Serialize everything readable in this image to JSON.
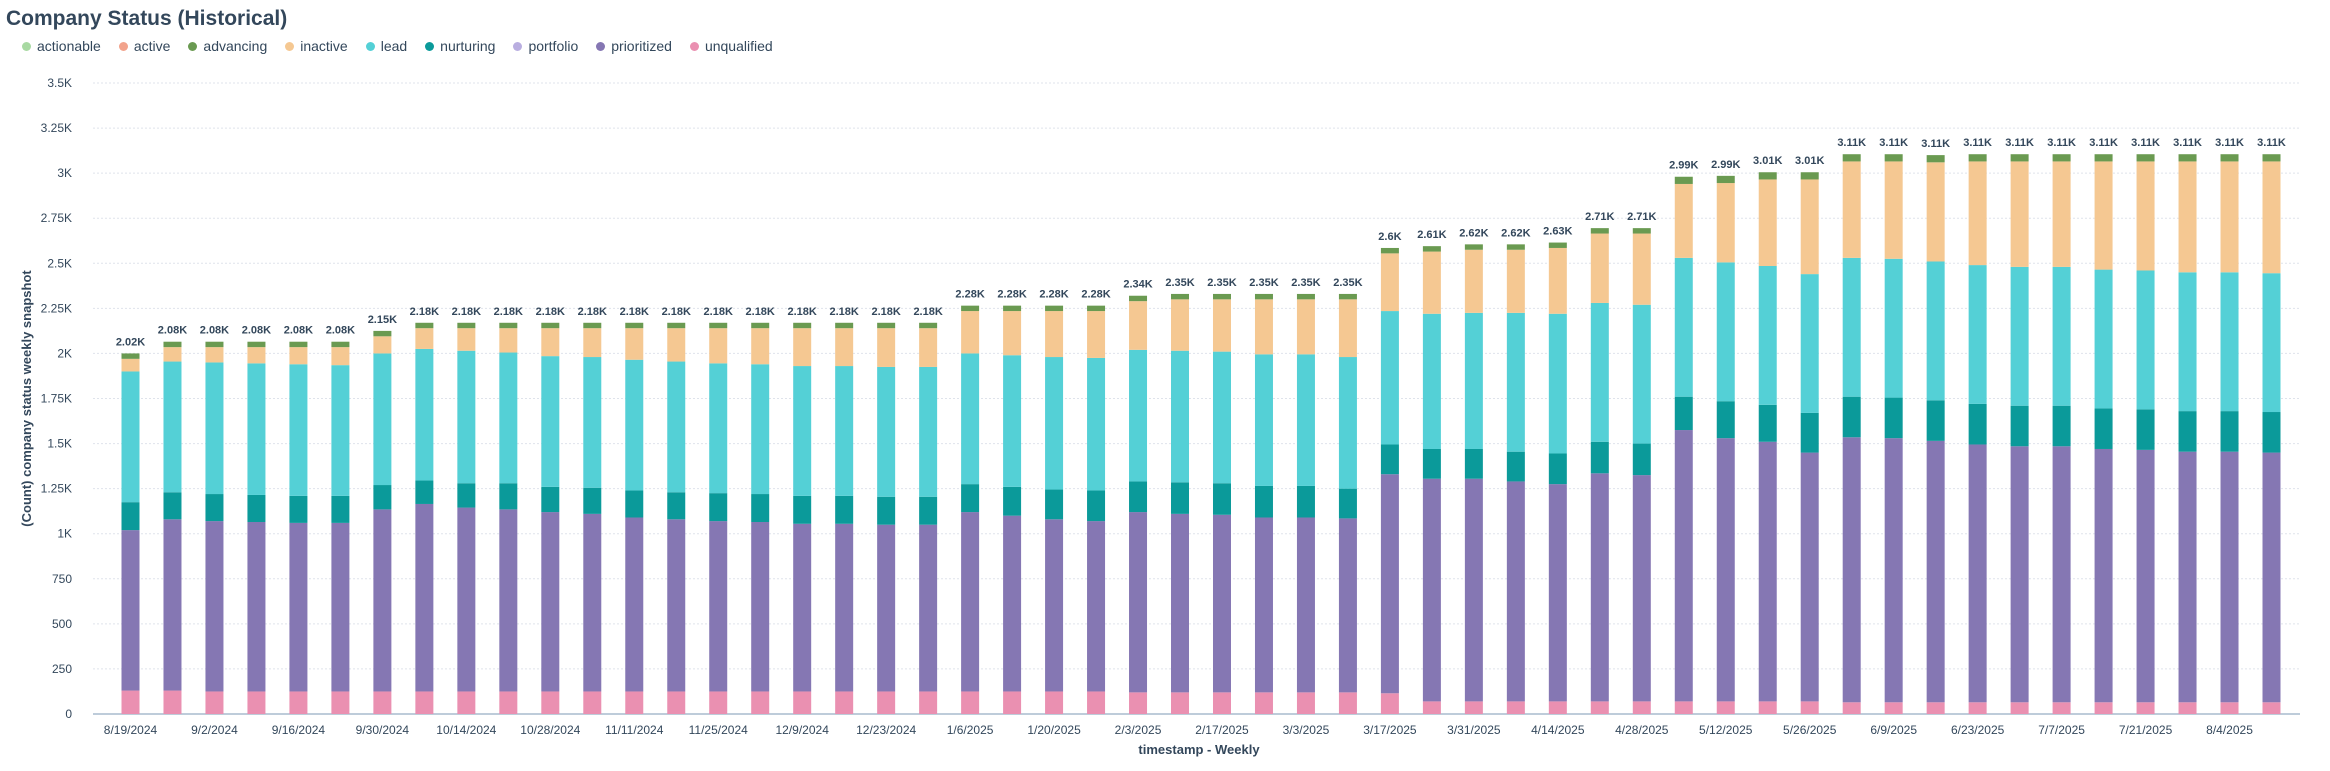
{
  "header": {
    "title": "Company Status (Historical)"
  },
  "chart_data": {
    "type": "bar",
    "stacked": true,
    "title": "Company Status (Historical)",
    "xlabel": "timestamp - Weekly",
    "ylabel": "(Count) company status weekly snapshot",
    "ylim": [
      0,
      3500
    ],
    "yticks": [
      0,
      250,
      500,
      750,
      1000,
      1250,
      1500,
      1750,
      2000,
      2250,
      2500,
      2750,
      3000,
      3250,
      3500
    ],
    "ytick_labels": [
      "0",
      "250",
      "500",
      "750",
      "1K",
      "1.25K",
      "1.5K",
      "1.75K",
      "2K",
      "2.25K",
      "2.5K",
      "2.75K",
      "3K",
      "3.25K",
      "3.5K"
    ],
    "grid": true,
    "legend_position": "top-left",
    "categories": [
      "8/19/2024",
      "8/26/2024",
      "9/2/2024",
      "9/9/2024",
      "9/16/2024",
      "9/23/2024",
      "9/30/2024",
      "10/7/2024",
      "10/14/2024",
      "10/21/2024",
      "10/28/2024",
      "11/4/2024",
      "11/11/2024",
      "11/18/2024",
      "11/25/2024",
      "12/2/2024",
      "12/9/2024",
      "12/16/2024",
      "12/23/2024",
      "12/30/2024",
      "1/6/2025",
      "1/13/2025",
      "1/20/2025",
      "1/27/2025",
      "2/3/2025",
      "2/10/2025",
      "2/17/2025",
      "2/24/2025",
      "3/3/2025",
      "3/10/2025",
      "3/17/2025",
      "3/24/2025",
      "3/31/2025",
      "4/7/2025",
      "4/14/2025",
      "4/21/2025",
      "4/28/2025",
      "5/5/2025",
      "5/12/2025",
      "5/19/2025",
      "5/26/2025",
      "6/2/2025",
      "6/9/2025",
      "6/16/2025",
      "6/23/2025",
      "6/30/2025",
      "7/7/2025",
      "7/14/2025",
      "7/21/2025",
      "7/28/2025",
      "8/4/2025",
      "8/11/2025"
    ],
    "xtick_labels": [
      "8/19/2024",
      "9/2/2024",
      "9/16/2024",
      "9/30/2024",
      "10/14/2024",
      "10/28/2024",
      "11/11/2024",
      "11/25/2024",
      "12/9/2024",
      "12/23/2024",
      "1/6/2025",
      "1/20/2025",
      "2/3/2025",
      "2/17/2025",
      "3/3/2025",
      "3/17/2025",
      "3/31/2025",
      "4/14/2025",
      "4/28/2025",
      "5/12/2025",
      "5/26/2025",
      "6/9/2025",
      "6/23/2025",
      "7/7/2025",
      "7/21/2025",
      "8/4/2025"
    ],
    "totals_labels": [
      "2.02K",
      "2.08K",
      "2.08K",
      "2.08K",
      "2.08K",
      "2.08K",
      "2.15K",
      "2.18K",
      "2.18K",
      "2.18K",
      "2.18K",
      "2.18K",
      "2.18K",
      "2.18K",
      "2.18K",
      "2.18K",
      "2.18K",
      "2.18K",
      "2.18K",
      "2.18K",
      "2.28K",
      "2.28K",
      "2.28K",
      "2.28K",
      "2.34K",
      "2.35K",
      "2.35K",
      "2.35K",
      "2.35K",
      "2.35K",
      "2.6K",
      "2.61K",
      "2.62K",
      "2.62K",
      "2.63K",
      "2.71K",
      "2.71K",
      "2.99K",
      "2.99K",
      "3.01K",
      "3.01K",
      "3.11K",
      "3.11K",
      "3.11K",
      "3.11K",
      "3.11K",
      "3.11K",
      "3.11K",
      "3.11K",
      "3.11K",
      "3.11K",
      "3.11K"
    ],
    "series": [
      {
        "name": "unqualified",
        "color": "#ea90b1",
        "values": [
          130,
          130,
          125,
          125,
          125,
          125,
          125,
          125,
          125,
          125,
          125,
          125,
          125,
          125,
          125,
          125,
          125,
          125,
          125,
          125,
          125,
          125,
          125,
          125,
          120,
          120,
          120,
          120,
          120,
          120,
          115,
          70,
          70,
          70,
          70,
          70,
          70,
          70,
          70,
          70,
          70,
          65,
          65,
          65,
          65,
          65,
          65,
          65,
          65,
          65,
          65,
          65
        ]
      },
      {
        "name": "prioritized",
        "color": "#8577b3",
        "values": [
          890,
          950,
          945,
          940,
          935,
          935,
          1010,
          1040,
          1020,
          1010,
          995,
          985,
          965,
          955,
          945,
          940,
          930,
          930,
          925,
          925,
          995,
          975,
          955,
          945,
          1000,
          990,
          985,
          970,
          970,
          965,
          1215,
          1235,
          1235,
          1220,
          1205,
          1265,
          1255,
          1505,
          1460,
          1440,
          1380,
          1470,
          1465,
          1450,
          1430,
          1420,
          1420,
          1405,
          1400,
          1390,
          1390,
          1385
        ]
      },
      {
        "name": "nurturing",
        "color": "#0b9a9a",
        "values": [
          155,
          150,
          150,
          150,
          150,
          150,
          135,
          130,
          135,
          145,
          140,
          145,
          150,
          150,
          155,
          155,
          155,
          155,
          155,
          155,
          155,
          160,
          165,
          170,
          170,
          175,
          175,
          175,
          175,
          165,
          165,
          165,
          165,
          165,
          170,
          175,
          175,
          185,
          205,
          205,
          220,
          225,
          225,
          225,
          225,
          225,
          225,
          225,
          225,
          225,
          225,
          225
        ]
      },
      {
        "name": "lead",
        "color": "#54d0d6",
        "values": [
          725,
          725,
          730,
          730,
          730,
          725,
          730,
          730,
          735,
          725,
          725,
          725,
          725,
          725,
          720,
          720,
          720,
          720,
          720,
          720,
          725,
          730,
          735,
          735,
          730,
          730,
          730,
          730,
          730,
          730,
          740,
          750,
          755,
          770,
          775,
          770,
          770,
          770,
          770,
          770,
          770,
          770,
          770,
          770,
          770,
          770,
          770,
          770,
          770,
          770,
          770,
          770
        ]
      },
      {
        "name": "inactive",
        "color": "#f5c892",
        "values": [
          70,
          80,
          85,
          90,
          95,
          100,
          95,
          115,
          125,
          135,
          155,
          160,
          175,
          185,
          195,
          200,
          210,
          210,
          215,
          215,
          235,
          245,
          255,
          260,
          270,
          285,
          290,
          305,
          305,
          320,
          320,
          345,
          350,
          350,
          365,
          385,
          395,
          410,
          440,
          480,
          525,
          535,
          540,
          550,
          575,
          585,
          585,
          600,
          605,
          615,
          615,
          620
        ]
      },
      {
        "name": "advancing",
        "color": "#6a9a51",
        "values": [
          30,
          30,
          30,
          30,
          30,
          30,
          30,
          30,
          30,
          30,
          30,
          30,
          30,
          30,
          30,
          30,
          30,
          30,
          30,
          30,
          30,
          30,
          30,
          30,
          30,
          30,
          30,
          30,
          30,
          30,
          30,
          30,
          30,
          30,
          30,
          30,
          30,
          40,
          40,
          40,
          40,
          40,
          40,
          40,
          40,
          40,
          40,
          40,
          40,
          40,
          40,
          40
        ]
      },
      {
        "name": "actionable",
        "color": "#a8d9a2",
        "values": [
          0,
          0,
          0,
          0,
          0,
          0,
          0,
          0,
          0,
          0,
          0,
          0,
          0,
          0,
          0,
          0,
          0,
          0,
          0,
          0,
          0,
          0,
          0,
          0,
          0,
          0,
          0,
          0,
          0,
          0,
          0,
          0,
          0,
          0,
          0,
          0,
          0,
          0,
          0,
          0,
          0,
          0,
          0,
          0,
          0,
          0,
          0,
          0,
          0,
          0,
          0,
          0
        ]
      },
      {
        "name": "active",
        "color": "#f2a38c",
        "values": [
          0,
          0,
          0,
          0,
          0,
          0,
          0,
          0,
          0,
          0,
          0,
          0,
          0,
          0,
          0,
          0,
          0,
          0,
          0,
          0,
          0,
          0,
          0,
          0,
          0,
          0,
          0,
          0,
          0,
          0,
          0,
          0,
          0,
          0,
          0,
          0,
          0,
          0,
          0,
          0,
          0,
          0,
          0,
          0,
          0,
          0,
          0,
          0,
          0,
          0,
          0,
          0
        ]
      },
      {
        "name": "portfolio",
        "color": "#b9aee0",
        "values": [
          0,
          0,
          0,
          0,
          0,
          0,
          0,
          0,
          0,
          0,
          0,
          0,
          0,
          0,
          0,
          0,
          0,
          0,
          0,
          0,
          0,
          0,
          0,
          0,
          0,
          0,
          0,
          0,
          0,
          0,
          0,
          0,
          0,
          0,
          0,
          0,
          0,
          0,
          0,
          0,
          0,
          0,
          0,
          0,
          0,
          0,
          0,
          0,
          0,
          0,
          0,
          0
        ]
      }
    ],
    "legend": [
      {
        "name": "actionable",
        "color": "#a8d9a2"
      },
      {
        "name": "active",
        "color": "#f2a38c"
      },
      {
        "name": "advancing",
        "color": "#6a9a51"
      },
      {
        "name": "inactive",
        "color": "#f5c892"
      },
      {
        "name": "lead",
        "color": "#54d0d6"
      },
      {
        "name": "nurturing",
        "color": "#0b9a9a"
      },
      {
        "name": "portfolio",
        "color": "#b9aee0"
      },
      {
        "name": "prioritized",
        "color": "#8577b3"
      },
      {
        "name": "unqualified",
        "color": "#ea90b1"
      }
    ]
  }
}
